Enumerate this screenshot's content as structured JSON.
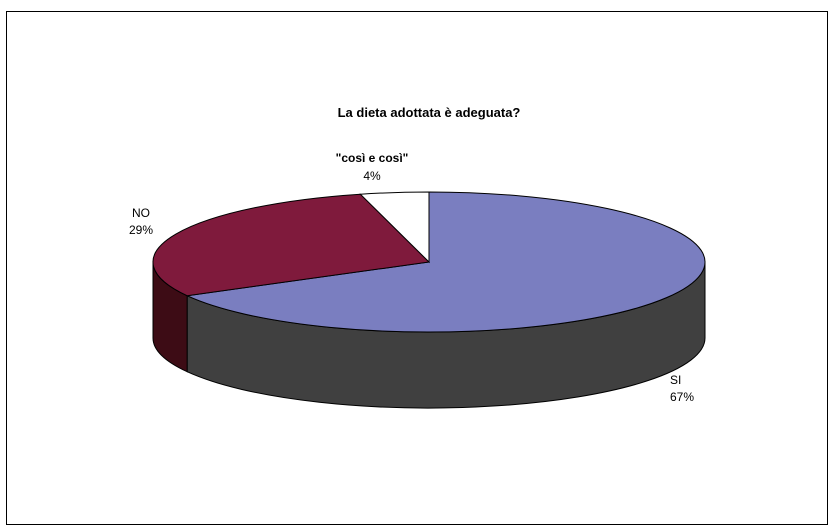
{
  "chart_data": {
    "type": "pie",
    "style": "3d",
    "title": "La dieta adottata è adeguata?",
    "slices": [
      {
        "label": "SI",
        "value": 67,
        "percent_label": "67%",
        "color": "#7a7ec0",
        "side_color": "#404040"
      },
      {
        "label": "NO",
        "value": 29,
        "percent_label": "29%",
        "color": "#7f1a3c",
        "side_color": "#3d0c15"
      },
      {
        "label": "\"così e così\"",
        "value": 4,
        "percent_label": "4%",
        "color": "#ffffff",
        "side_color": "#d0d0d0"
      }
    ]
  }
}
